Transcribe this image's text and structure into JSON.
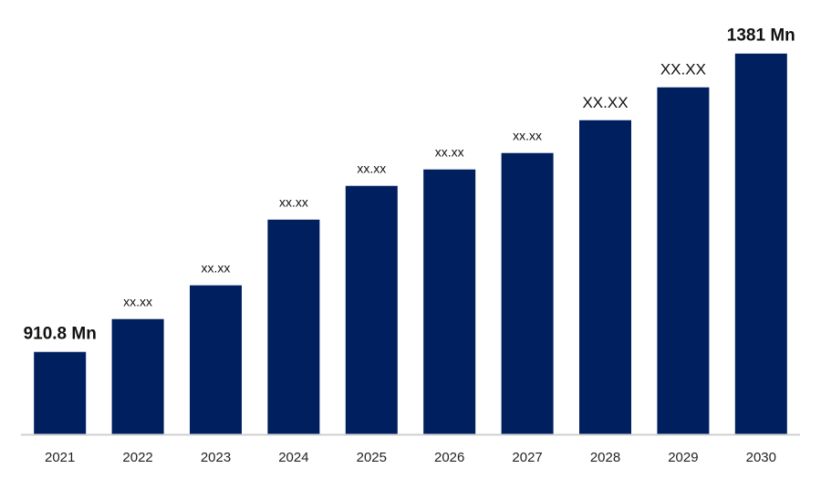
{
  "chart_data": {
    "type": "bar",
    "categories": [
      "2021",
      "2022",
      "2023",
      "2024",
      "2025",
      "2026",
      "2027",
      "2028",
      "2029",
      "2030"
    ],
    "values": [
      910.8,
      962.6,
      1015.8,
      1119.3,
      1172.5,
      1198.4,
      1224.3,
      1276.0,
      1327.8,
      1381
    ],
    "data_labels": [
      "910.8 Mn",
      "xx.xx",
      "xx.xx",
      "xx.xx",
      "xx.xx",
      "xx.xx",
      "xx.xx",
      "XX.XX",
      "XX.XX",
      "1381 Mn"
    ],
    "label_styles": [
      "large",
      "small",
      "small",
      "small",
      "small",
      "small",
      "small",
      "medium",
      "medium",
      "large"
    ],
    "title": "",
    "xlabel": "",
    "ylabel": "",
    "ylim": [
      781,
      1400
    ],
    "grid": false,
    "y_axis_visible": false,
    "bar_color": "#001f5f",
    "axis_color": "#d0d0d0"
  }
}
